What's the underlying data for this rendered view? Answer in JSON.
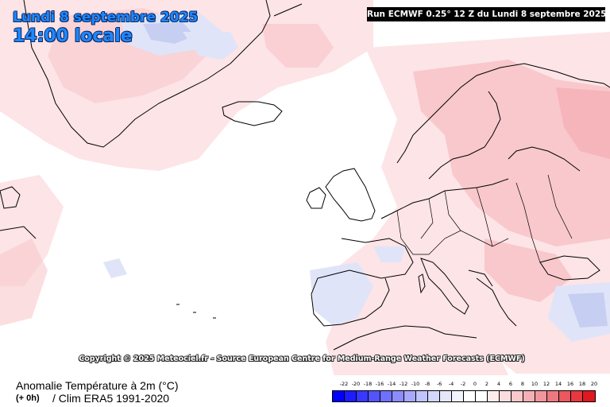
{
  "header": {
    "date_line": "Lundi 8 septembre 2025",
    "time_line": "14:00 locale",
    "run_info": "Run ECMWF 0.25° 12 Z du Lundi 8 septembre 2025"
  },
  "map": {
    "copyright": "Copyright © 2025 Meteociel.fr - Source European Centre for Medium-Range Weather Forecasts (ECMWF)",
    "colors": {
      "sea_neutral": "#ffffff",
      "light_pink": "#fde4e6",
      "pink": "#f8c8cc",
      "light_blue": "#e0e4f8",
      "blue": "#c6cef2",
      "coast": "#000000"
    }
  },
  "footer": {
    "title": "Anomalie Température à 2m (°C)",
    "offset": "(+ 0h)",
    "clim": "/ Clim ERA5 1991-2020"
  },
  "legend": {
    "labels": [
      "-22",
      "-20",
      "-18",
      "-16",
      "-14",
      "-12",
      "-10",
      "-8",
      "-6",
      "-4",
      "-2",
      "0",
      "2",
      "4",
      "6",
      "8",
      "10",
      "12",
      "14",
      "16",
      "18",
      "20"
    ],
    "colors": [
      "#0000ff",
      "#1c1cff",
      "#3838ff",
      "#5454ff",
      "#7070ff",
      "#8c8cff",
      "#a8a8ff",
      "#c0c4ff",
      "#d4d8fb",
      "#e4e8fa",
      "#f2f4fd",
      "#ffffff",
      "#ffffff",
      "#fdecee",
      "#fbdde0",
      "#f8c8cc",
      "#f5b0b5",
      "#f2969c",
      "#ee7880",
      "#ea5860",
      "#e63840",
      "#e01820"
    ]
  }
}
